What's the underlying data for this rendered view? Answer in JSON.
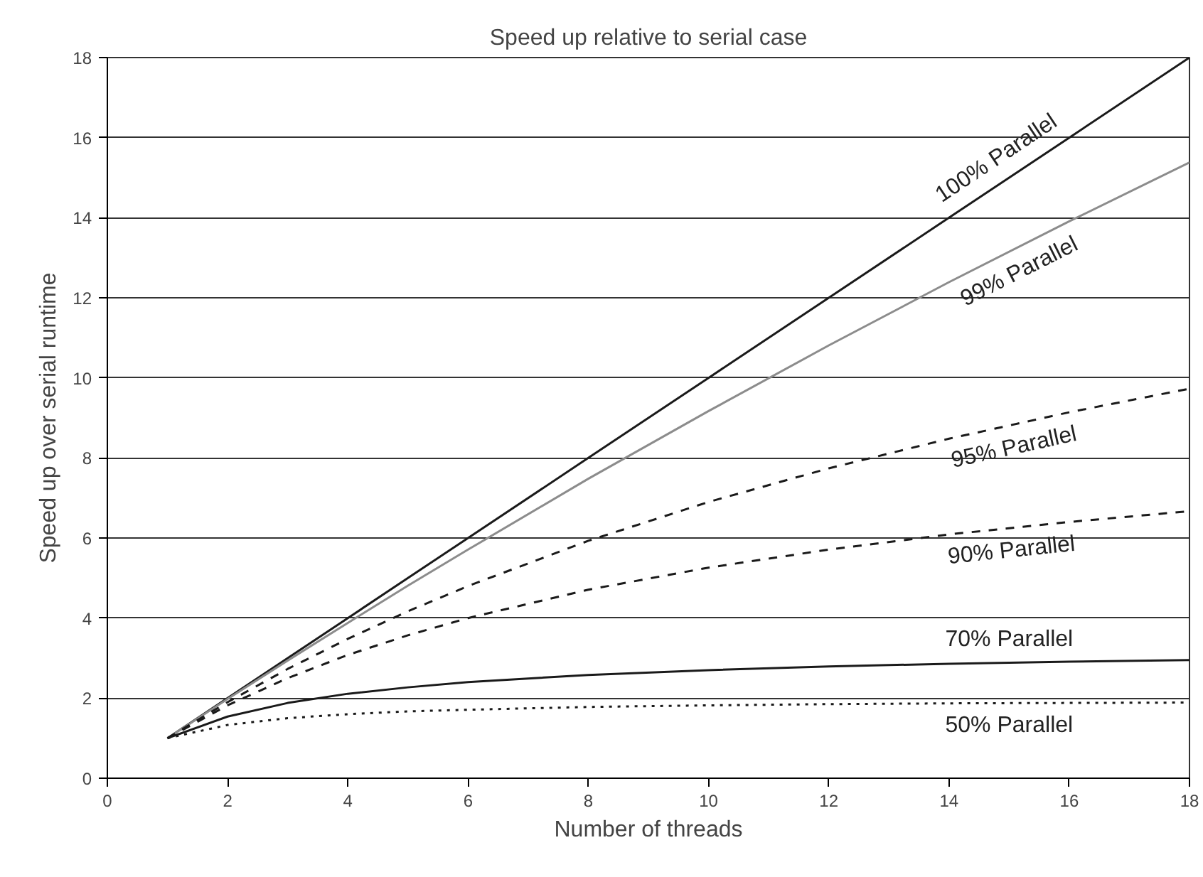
{
  "chart_data": {
    "type": "line",
    "title": "Speed up relative to serial case",
    "xlabel": "Number of threads",
    "ylabel": "Speed up over serial runtime",
    "x": [
      1,
      2,
      3,
      4,
      5,
      6,
      8,
      10,
      12,
      14,
      16,
      18
    ],
    "series": [
      {
        "name": "100% Parallel",
        "color": "#1a1a1a",
        "line_style": "solid",
        "values": [
          1,
          2,
          3,
          4,
          5,
          6,
          8,
          10,
          12,
          14,
          16,
          18
        ]
      },
      {
        "name": "99% Parallel",
        "color": "#8c8c8c",
        "line_style": "solid",
        "values": [
          1,
          1.98,
          2.94,
          3.88,
          4.81,
          5.71,
          7.48,
          9.17,
          10.81,
          12.39,
          13.91,
          15.38
        ]
      },
      {
        "name": "95% Parallel",
        "color": "#1a1a1a",
        "line_style": "dashed",
        "values": [
          1,
          1.9,
          2.73,
          3.48,
          4.17,
          4.8,
          5.93,
          6.9,
          7.74,
          8.48,
          9.14,
          9.73
        ]
      },
      {
        "name": "90% Parallel",
        "color": "#1a1a1a",
        "line_style": "dashed",
        "values": [
          1,
          1.82,
          2.5,
          3.08,
          3.57,
          4.0,
          4.71,
          5.26,
          5.71,
          6.09,
          6.4,
          6.67
        ]
      },
      {
        "name": "70% Parallel",
        "color": "#1a1a1a",
        "line_style": "solid",
        "values": [
          1,
          1.54,
          1.88,
          2.11,
          2.27,
          2.4,
          2.58,
          2.7,
          2.79,
          2.86,
          2.91,
          2.95
        ]
      },
      {
        "name": "50% Parallel",
        "color": "#1a1a1a",
        "line_style": "dotted",
        "values": [
          1,
          1.33,
          1.5,
          1.6,
          1.67,
          1.71,
          1.78,
          1.82,
          1.85,
          1.87,
          1.88,
          1.89
        ]
      }
    ],
    "xlim": [
      0,
      18
    ],
    "ylim": [
      0,
      18
    ],
    "xticks": [
      0,
      2,
      4,
      6,
      8,
      10,
      12,
      14,
      16,
      18
    ],
    "yticks": [
      0,
      2,
      4,
      6,
      8,
      10,
      12,
      14,
      16,
      18
    ],
    "grid": "y",
    "marker": "none"
  }
}
